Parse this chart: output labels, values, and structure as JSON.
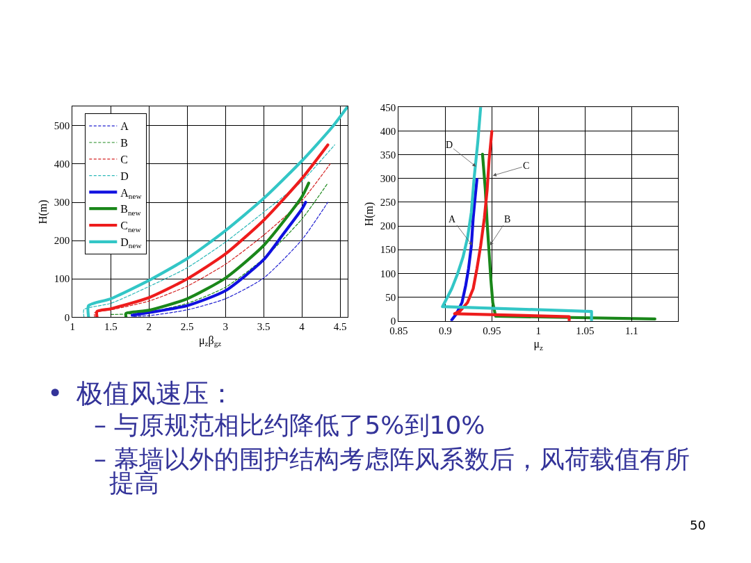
{
  "chart_data": [
    {
      "type": "line",
      "xlabel": "μ$_{z}$β$_{gz}$",
      "ylabel": "H(m)",
      "xlim": [
        1,
        4.6
      ],
      "xticks": [
        1,
        1.5,
        2,
        2.5,
        3,
        3.5,
        4,
        4.5
      ],
      "ylim": [
        0,
        550
      ],
      "yticks": [
        0,
        100,
        200,
        300,
        400,
        500
      ],
      "grid": true,
      "legend": "top left",
      "series": [
        {
          "name": "A",
          "color": "#1f1fd0",
          "line_style": "dashed",
          "x": [
            1.8,
            2.0,
            2.5,
            3.0,
            3.5,
            4.0,
            4.34
          ],
          "values": [
            2,
            4,
            19,
            48,
            102,
            202,
            300
          ]
        },
        {
          "name": "B",
          "color": "#1e8a1e",
          "line_style": "dashed",
          "x": [
            1.5,
            1.7,
            2.0,
            2.5,
            3.0,
            3.5,
            4.0,
            4.34
          ],
          "values": [
            7,
            8,
            13,
            36,
            78,
            153,
            256,
            350
          ]
        },
        {
          "name": "C",
          "color": "#d42020",
          "line_style": "dashed",
          "x": [
            1.29,
            1.29,
            1.5,
            2.0,
            2.5,
            3.0,
            3.5,
            4.0,
            4.37
          ],
          "values": [
            0,
            12,
            19,
            42,
            81,
            138,
            214,
            304,
            400
          ]
        },
        {
          "name": "D",
          "color": "#2ab8b8",
          "line_style": "dashed",
          "x": [
            1.15,
            1.15,
            1.5,
            2.0,
            2.5,
            3.0,
            3.5,
            4.0,
            4.43
          ],
          "values": [
            0,
            20,
            36,
            80,
            129,
            196,
            274,
            355,
            450
          ]
        },
        {
          "name": "A$_{new}$",
          "color": "#1010e0",
          "line_style": "solid",
          "x": [
            1.78,
            2.0,
            2.5,
            3.0,
            3.5,
            3.75,
            4.0,
            4.05
          ],
          "values": [
            5,
            12,
            30,
            69,
            150,
            215,
            282,
            300
          ]
        },
        {
          "name": "B$_{new}$",
          "color": "#1a871a",
          "line_style": "solid",
          "x": [
            1.7,
            1.7,
            2.0,
            2.5,
            3.0,
            3.5,
            4.0,
            4.09
          ],
          "values": [
            0,
            10,
            18,
            48,
            102,
            187,
            314,
            350
          ]
        },
        {
          "name": "C$_{new}$",
          "color": "#ee1c1c",
          "line_style": "solid",
          "x": [
            1.32,
            1.32,
            1.5,
            2.0,
            2.5,
            3.0,
            3.5,
            4.0,
            4.34
          ],
          "values": [
            0,
            15,
            22,
            51,
            100,
            165,
            253,
            362,
            450
          ]
        },
        {
          "name": "D$_{new}$",
          "color": "#33c6c6",
          "line_style": "solid",
          "x": [
            1.21,
            1.21,
            1.5,
            2.0,
            2.5,
            3.0,
            3.5,
            4.0,
            4.4,
            4.6
          ],
          "values": [
            0,
            30,
            48,
            96,
            153,
            226,
            310,
            408,
            497,
            550
          ]
        }
      ]
    },
    {
      "type": "line",
      "xlabel": "μ$_{z}$",
      "ylabel": "H(m)",
      "xlim": [
        0.85,
        1.15
      ],
      "xticks": [
        0.85,
        0.9,
        0.95,
        1,
        1.05,
        1.1
      ],
      "ylim": [
        0,
        450
      ],
      "yticks": [
        0,
        50,
        100,
        150,
        200,
        250,
        300,
        350,
        400,
        450
      ],
      "grid": true,
      "series": [
        {
          "color": "#1010e0",
          "line_style": "solid",
          "x": [
            0.907,
            0.912,
            0.918,
            0.922,
            0.925,
            0.928,
            0.93,
            0.932,
            0.934
          ],
          "values": [
            2,
            15,
            39,
            75,
            110,
            158,
            217,
            259,
            298
          ]
        },
        {
          "color": "#1a871a",
          "line_style": "solid",
          "x": [
            0.94,
            0.943,
            0.945,
            0.947,
            0.949,
            0.951,
            0.954,
            1.125
          ],
          "values": [
            351,
            277,
            205,
            146,
            86,
            39,
            10,
            4
          ]
        },
        {
          "color": "#ee1c1c",
          "line_style": "solid",
          "x": [
            1.033,
            1.033,
            0.91,
            0.916,
            0.924,
            0.93,
            0.934,
            0.938,
            0.942,
            0.945,
            0.947,
            0.95
          ],
          "values": [
            0,
            9,
            15,
            21,
            39,
            68,
            110,
            158,
            217,
            277,
            337,
            399
          ]
        },
        {
          "color": "#33c6c6",
          "line_style": "solid",
          "x": [
            1.057,
            1.057,
            0.897,
            0.901,
            0.907,
            0.913,
            0.919,
            0.924,
            0.928,
            0.931,
            0.935,
            0.938
          ],
          "values": [
            0,
            20,
            30,
            45,
            68,
            98,
            134,
            176,
            229,
            301,
            378,
            450
          ]
        }
      ],
      "annotations": [
        {
          "text": "D",
          "x": 0.933,
          "y": 325
        },
        {
          "text": "C",
          "x": 0.951,
          "y": 306
        },
        {
          "text": "A",
          "x": 0.929,
          "y": 159
        },
        {
          "text": "B",
          "x": 0.948,
          "y": 159
        }
      ]
    },
    {
      "type": "other",
      "annotations": [
        "• 极值风速压：",
        "– 与原规范相比约降低了5%到10%",
        "– 幕墙以外的围护结构考虑阵风系数后，风荷载值有所提高",
        "50"
      ]
    }
  ]
}
